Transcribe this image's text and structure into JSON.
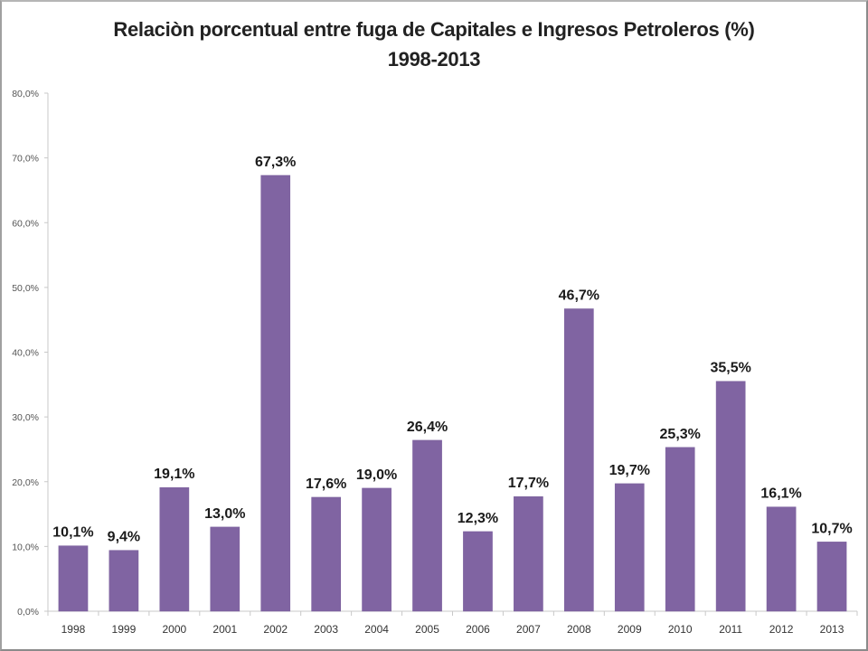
{
  "chart_data": {
    "type": "bar",
    "title": "Relaciòn porcentual entre fuga de Capitales e Ingresos Petroleros (%)",
    "subtitle": "1998-2013",
    "xlabel": "",
    "ylabel": "",
    "categories": [
      "1998",
      "1999",
      "2000",
      "2001",
      "2002",
      "2003",
      "2004",
      "2005",
      "2006",
      "2007",
      "2008",
      "2009",
      "2010",
      "2011",
      "2012",
      "2013"
    ],
    "values": [
      10.1,
      9.4,
      19.1,
      13.0,
      67.3,
      17.6,
      19.0,
      26.4,
      12.3,
      17.7,
      46.7,
      19.7,
      25.3,
      35.5,
      16.1,
      10.7
    ],
    "data_labels": [
      "10,1%",
      "9,4%",
      "19,1%",
      "13,0%",
      "67,3%",
      "17,6%",
      "19,0%",
      "26,4%",
      "12,3%",
      "17,7%",
      "46,7%",
      "19,7%",
      "25,3%",
      "35,5%",
      "16,1%",
      "10,7%"
    ],
    "ylim": [
      0,
      80
    ],
    "yticks": [
      0,
      10,
      20,
      30,
      40,
      50,
      60,
      70,
      80
    ],
    "ytick_labels": [
      "0,0%",
      "10,0%",
      "20,0%",
      "30,0%",
      "40,0%",
      "50,0%",
      "60,0%",
      "70,0%",
      "80,0%"
    ],
    "grid": false,
    "legend": "none",
    "bar_color": "#8064A2"
  }
}
